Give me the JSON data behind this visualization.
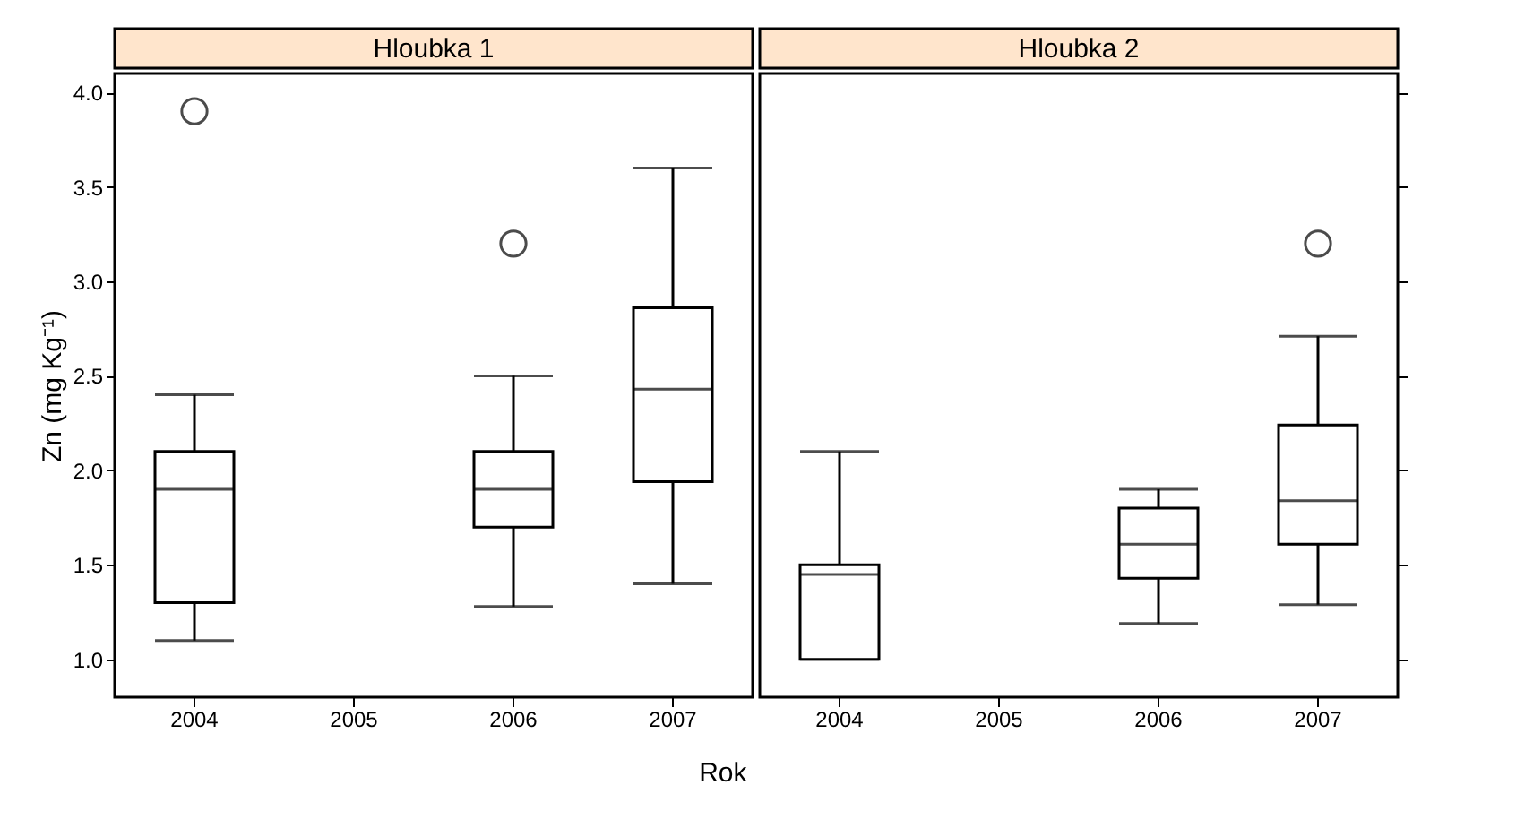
{
  "chart_data": [
    {
      "type": "box",
      "title": "Hloubka 1",
      "ylabel": "Zn (mg Kg⁻¹)",
      "xlabel": "Rok",
      "categories": [
        "2004",
        "2005",
        "2006",
        "2007"
      ],
      "ylim": [
        0.8,
        4.1
      ],
      "yticks": [
        {
          "value": 1,
          "label": "1.0"
        },
        1.5,
        {
          "value": 2,
          "label": "2.0"
        },
        2.5,
        {
          "value": 3,
          "label": "3.0"
        },
        3.5,
        {
          "value": 4,
          "label": "4.0"
        }
      ],
      "grid": false,
      "boxes": [
        {
          "low": 1.1,
          "q1": 1.3,
          "median": 1.9,
          "q3": 2.1,
          "high": 2.4,
          "outliers": [
            3.9
          ]
        },
        null,
        {
          "low": 1.28,
          "q1": 1.7,
          "median": 1.9,
          "q3": 2.1,
          "high": 2.5,
          "outliers": [
            3.2
          ]
        },
        {
          "low": 1.4,
          "q1": 1.94,
          "median": 2.43,
          "q3": 2.86,
          "high": 3.6
        }
      ]
    },
    {
      "type": "box",
      "title": "Hloubka 2",
      "categories": [
        "2004",
        "2005",
        "2006",
        "2007"
      ],
      "ylim": [
        0.8,
        4.1
      ],
      "yticks": [
        {
          "value": 1,
          "label": null
        },
        {
          "value": 1.5,
          "label": null
        },
        {
          "value": 2,
          "label": null
        },
        {
          "value": 2.5,
          "label": null
        },
        {
          "value": 3,
          "label": null
        },
        {
          "value": 3.5,
          "label": null
        },
        {
          "value": 4,
          "label": null
        }
      ],
      "grid": false,
      "tick_labels": "x",
      "boxes": [
        {
          "low": 1.0,
          "q1": 1.0,
          "median": 1.45,
          "q3": 1.5,
          "high": 2.1
        },
        null,
        {
          "low": 1.19,
          "q1": 1.43,
          "median": 1.61,
          "q3": 1.8,
          "high": 1.9
        },
        {
          "low": 1.29,
          "q1": 1.61,
          "median": 1.84,
          "q3": 2.24,
          "high": 2.71,
          "outliers": [
            3.2
          ]
        }
      ]
    }
  ]
}
